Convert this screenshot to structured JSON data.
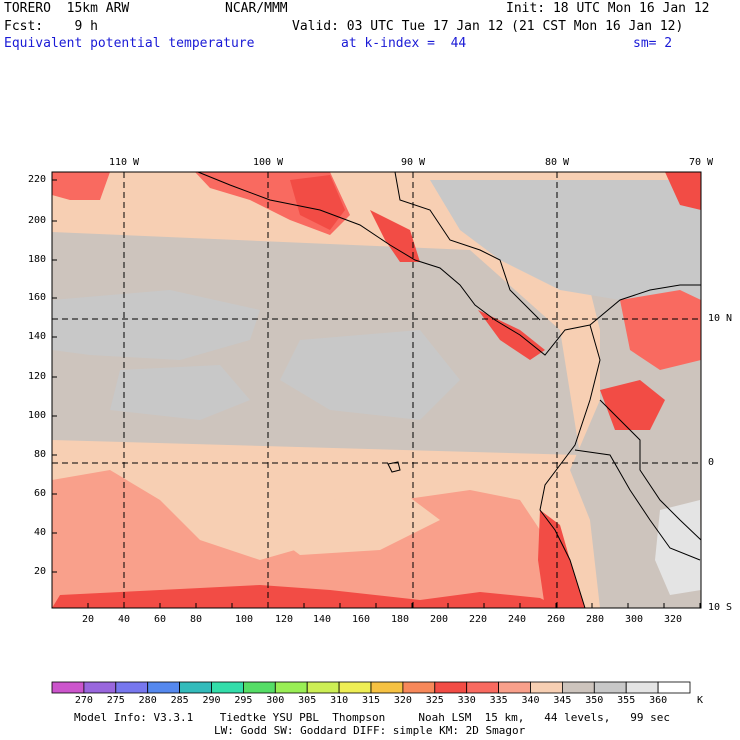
{
  "header": {
    "model": "TORERO  15km ARW",
    "org": "NCAR/MMM",
    "init": "Init: 18 UTC Mon 16 Jan 12",
    "fcst": "Fcst:    9 h",
    "valid": "Valid: 03 UTC Tue 17 Jan 12 (21 CST Mon 16 Jan 12)",
    "field": "Equivalent potential temperature",
    "level": "at k-index =  44",
    "smooth": "sm= 2"
  },
  "map": {
    "lon_labels": [
      "110 W",
      "100 W",
      "90 W",
      "80 W",
      "70 W"
    ],
    "lat_labels": [
      "10 N",
      "0",
      "10 S"
    ],
    "grid_x_ticks": [
      "20",
      "40",
      "60",
      "80",
      "100",
      "120",
      "140",
      "160",
      "180",
      "200",
      "220",
      "240",
      "260",
      "280",
      "300",
      "320"
    ],
    "grid_y_ticks": [
      "220",
      "200",
      "180",
      "160",
      "140",
      "120",
      "100",
      "80",
      "60",
      "40",
      "20"
    ]
  },
  "colorbar": {
    "unit": "K",
    "labels": [
      "270",
      "275",
      "280",
      "285",
      "290",
      "295",
      "300",
      "305",
      "310",
      "315",
      "320",
      "325",
      "330",
      "335",
      "340",
      "345",
      "350",
      "355",
      "360"
    ],
    "colors": [
      "#cc55cc",
      "#9966dd",
      "#7777ee",
      "#5588ee",
      "#33bbbb",
      "#33ddaa",
      "#55dd66",
      "#99ee55",
      "#ccee55",
      "#eeee55",
      "#f6c243",
      "#f7885a",
      "#f24c45",
      "#f96a60",
      "#f9a08b",
      "#f7cfb3",
      "#cdc4bd",
      "#c8c8c8",
      "#e4e4e4",
      "#ffffff"
    ]
  },
  "footer": {
    "line1": "Model Info: V3.3.1    Tiedtke YSU PBL  Thompson     Noah LSM  15 km,   44 levels,   99 sec",
    "line2": "LW: Godd SW: Goddard DIFF: simple KM: 2D Smagor"
  }
}
